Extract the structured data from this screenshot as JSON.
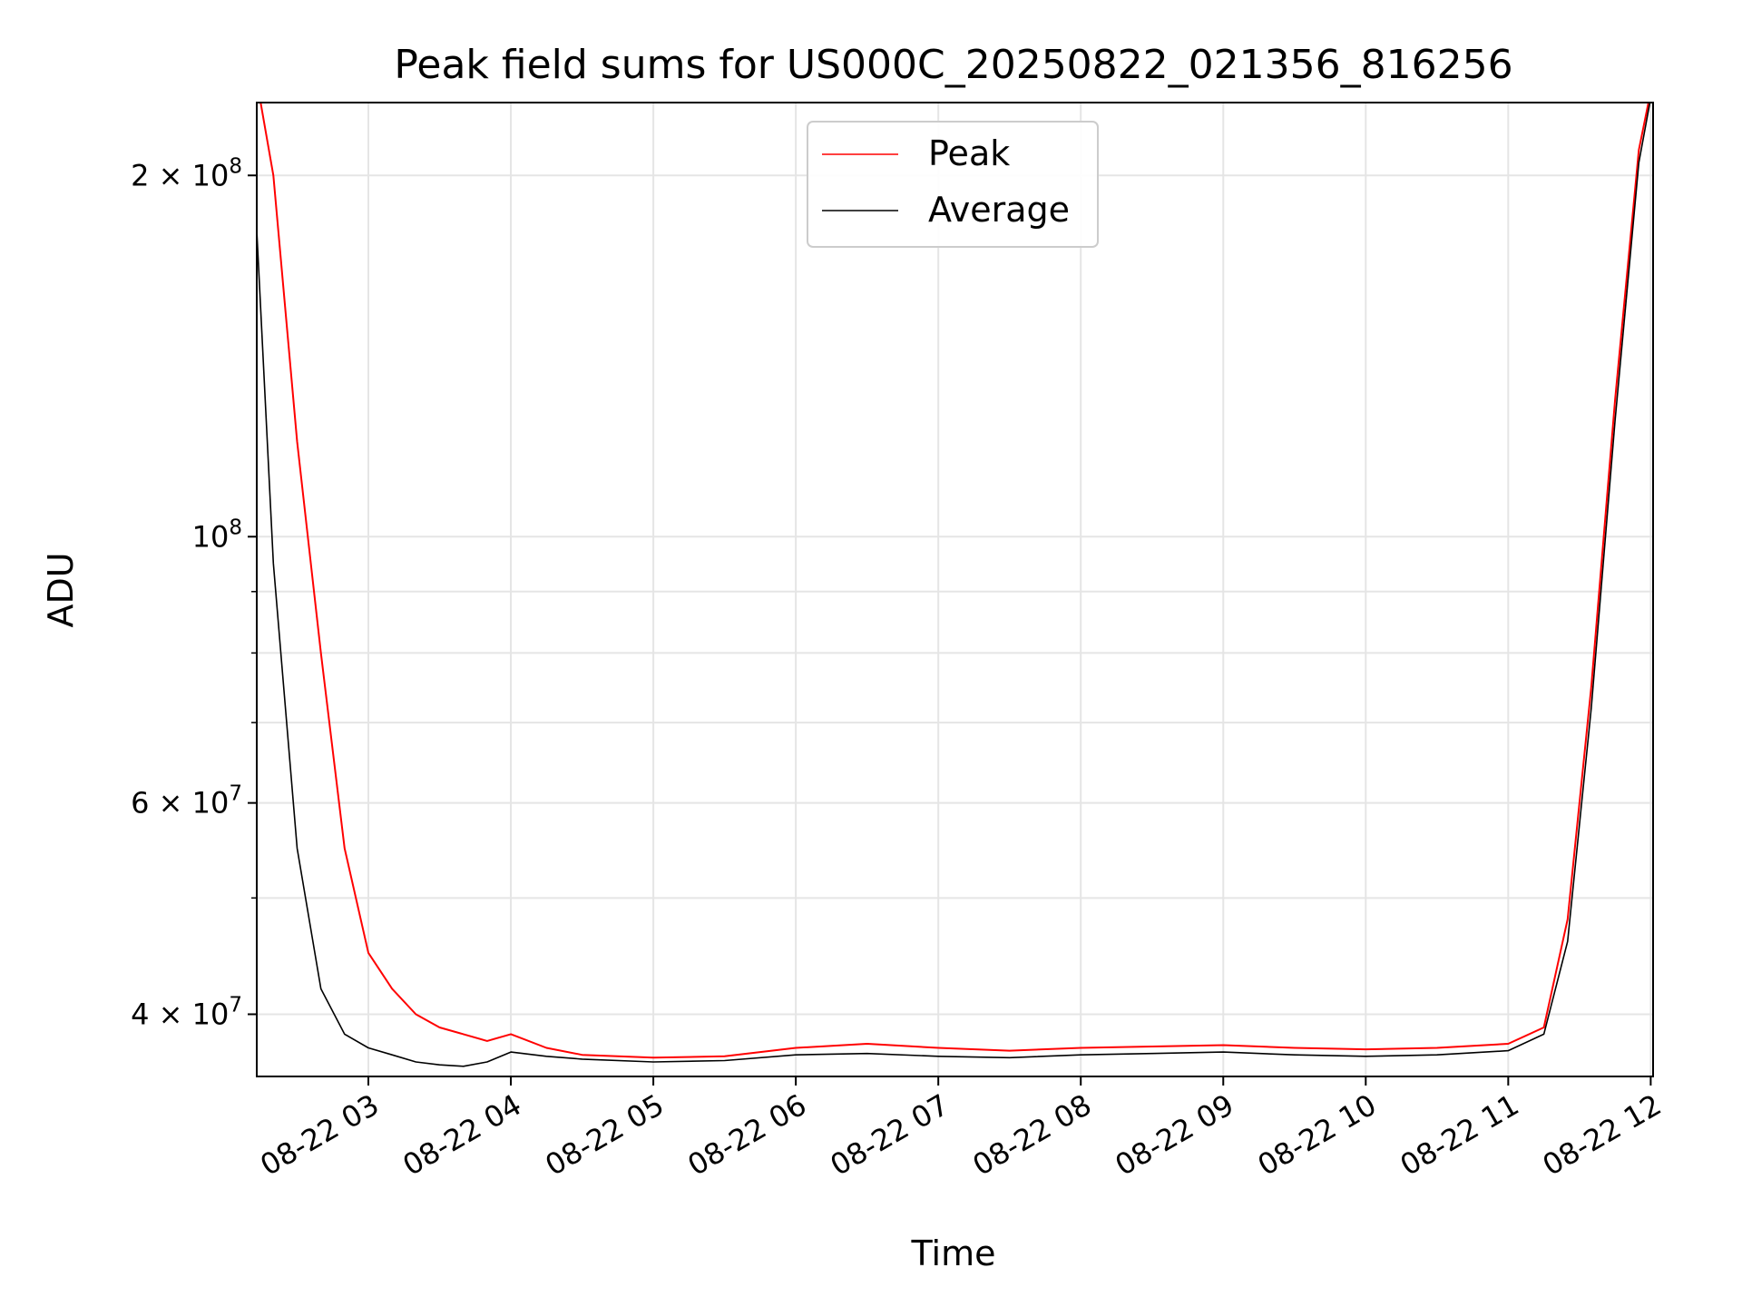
{
  "chart_data": {
    "type": "line",
    "title": "Peak field sums for US000C_20250822_021356_816256",
    "xlabel": "Time",
    "ylabel": "ADU",
    "y_scale": "log",
    "ylim": [
      35500000,
      230000000
    ],
    "xlim": [
      "2025-08-22 02:13",
      "2025-08-22 12:01"
    ],
    "grid": true,
    "legend": {
      "placement": "top-center",
      "entries": [
        "Peak",
        "Average"
      ]
    },
    "x_ticks": [
      "08-22 03",
      "08-22 04",
      "08-22 05",
      "08-22 06",
      "08-22 07",
      "08-22 08",
      "08-22 09",
      "08-22 10",
      "08-22 11",
      "08-22 12"
    ],
    "y_ticks": [
      {
        "value": 40000000,
        "mantissa": "4",
        "exponent": "7"
      },
      {
        "value": 60000000,
        "mantissa": "6",
        "exponent": "7"
      },
      {
        "value": 100000000,
        "mantissa": "",
        "exponent": "8"
      },
      {
        "value": 200000000,
        "mantissa": "2",
        "exponent": "8"
      }
    ],
    "series": [
      {
        "name": "Peak",
        "color": "#ff0000",
        "x": [
          "2025-08-22 02:13",
          "2025-08-22 02:20",
          "2025-08-22 02:30",
          "2025-08-22 02:40",
          "2025-08-22 02:50",
          "2025-08-22 03:00",
          "2025-08-22 03:10",
          "2025-08-22 03:20",
          "2025-08-22 03:30",
          "2025-08-22 03:40",
          "2025-08-22 03:50",
          "2025-08-22 04:00",
          "2025-08-22 04:15",
          "2025-08-22 04:30",
          "2025-08-22 05:00",
          "2025-08-22 05:30",
          "2025-08-22 06:00",
          "2025-08-22 06:30",
          "2025-08-22 07:00",
          "2025-08-22 07:30",
          "2025-08-22 08:00",
          "2025-08-22 08:30",
          "2025-08-22 09:00",
          "2025-08-22 09:30",
          "2025-08-22 10:00",
          "2025-08-22 10:30",
          "2025-08-22 11:00",
          "2025-08-22 11:15",
          "2025-08-22 11:25",
          "2025-08-22 11:35",
          "2025-08-22 11:45",
          "2025-08-22 11:55",
          "2025-08-22 12:00"
        ],
        "values": [
          240000000,
          200000000,
          120000000,
          80000000,
          55000000,
          45000000,
          42000000,
          40000000,
          39000000,
          38500000,
          38000000,
          38500000,
          37500000,
          37000000,
          36800000,
          36900000,
          37500000,
          37800000,
          37500000,
          37300000,
          37500000,
          37600000,
          37700000,
          37500000,
          37400000,
          37500000,
          37800000,
          39000000,
          48000000,
          75000000,
          130000000,
          210000000,
          235000000
        ]
      },
      {
        "name": "Average",
        "color": "#000000",
        "x": [
          "2025-08-22 02:13",
          "2025-08-22 02:20",
          "2025-08-22 02:30",
          "2025-08-22 02:40",
          "2025-08-22 02:50",
          "2025-08-22 03:00",
          "2025-08-22 03:10",
          "2025-08-22 03:20",
          "2025-08-22 03:30",
          "2025-08-22 03:40",
          "2025-08-22 03:50",
          "2025-08-22 04:00",
          "2025-08-22 04:15",
          "2025-08-22 04:30",
          "2025-08-22 05:00",
          "2025-08-22 05:30",
          "2025-08-22 06:00",
          "2025-08-22 06:30",
          "2025-08-22 07:00",
          "2025-08-22 07:30",
          "2025-08-22 08:00",
          "2025-08-22 08:30",
          "2025-08-22 09:00",
          "2025-08-22 09:30",
          "2025-08-22 10:00",
          "2025-08-22 10:30",
          "2025-08-22 11:00",
          "2025-08-22 11:15",
          "2025-08-22 11:25",
          "2025-08-22 11:35",
          "2025-08-22 11:45",
          "2025-08-22 11:55",
          "2025-08-22 12:00"
        ],
        "values": [
          180000000,
          95000000,
          55000000,
          42000000,
          38500000,
          37500000,
          37000000,
          36500000,
          36300000,
          36200000,
          36500000,
          37200000,
          36900000,
          36700000,
          36500000,
          36600000,
          37000000,
          37100000,
          36900000,
          36800000,
          37000000,
          37100000,
          37200000,
          37000000,
          36900000,
          37000000,
          37300000,
          38500000,
          46000000,
          72000000,
          125000000,
          205000000,
          232000000
        ]
      }
    ]
  }
}
